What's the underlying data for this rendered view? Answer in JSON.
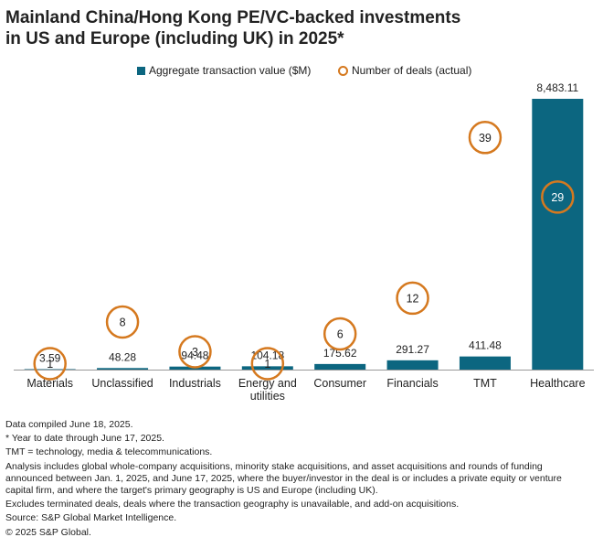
{
  "title_lines": [
    "Mainland China/Hong Kong PE/VC-backed investments",
    "in US and Europe (including UK) in 2025*"
  ],
  "legend": {
    "value_label": "Aggregate transaction value ($M)",
    "deals_label": "Number of deals (actual)"
  },
  "colors": {
    "bar": "#0c6680",
    "circle": "#d5791f",
    "axis": "#999999"
  },
  "chart_data": {
    "type": "bar",
    "title": "Mainland China/Hong Kong PE/VC-backed investments in US and Europe (including UK) in 2025*",
    "categories": [
      "Materials",
      "Unclassified",
      "Industrials",
      "Energy and utilities",
      "Consumer",
      "Financials",
      "TMT",
      "Healthcare"
    ],
    "category_lines": [
      [
        "Materials"
      ],
      [
        "Unclassified"
      ],
      [
        "Industrials"
      ],
      [
        "Energy and",
        "utilities"
      ],
      [
        "Consumer"
      ],
      [
        "Financials"
      ],
      [
        "TMT"
      ],
      [
        "Healthcare"
      ]
    ],
    "series": [
      {
        "name": "Aggregate transaction value ($M)",
        "axis": "left",
        "type": "bar",
        "values": [
          3.59,
          48.28,
          94.48,
          104.18,
          175.62,
          291.27,
          411.48,
          8483.11
        ],
        "labels": [
          "3.59",
          "48.28",
          "94.48",
          "104.18",
          "175.62",
          "291.27",
          "411.48",
          "8,483.11"
        ]
      },
      {
        "name": "Number of deals (actual)",
        "axis": "right",
        "type": "marker",
        "values": [
          1,
          8,
          3,
          1,
          6,
          12,
          39,
          29
        ]
      }
    ],
    "ylim_value": [
      0,
      8483.11
    ],
    "ylim_deals": [
      0,
      45.5
    ],
    "legend_position": "top-center",
    "grid": false
  },
  "notes": {
    "compiled": "Data compiled June 18, 2025.",
    "ytd": "* Year to date through June 17, 2025.",
    "tmt": "TMT = technology, media & telecommunications.",
    "analysis_lines": [
      "Analysis includes global whole-company acquisitions, minority stake acquisitions, and asset acquisitions and rounds of funding",
      "announced between Jan. 1, 2025, and June 17, 2025, where the buyer/investor in the deal is or includes a private equity or venture",
      "capital firm, and where the target's primary geography is US and Europe (including UK)."
    ],
    "excludes": "Excludes terminated deals, deals where the transaction geography is unavailable, and add-on acquisitions.",
    "source": "Source: S&P Global Market Intelligence.",
    "copyright": "© 2025 S&P Global."
  }
}
